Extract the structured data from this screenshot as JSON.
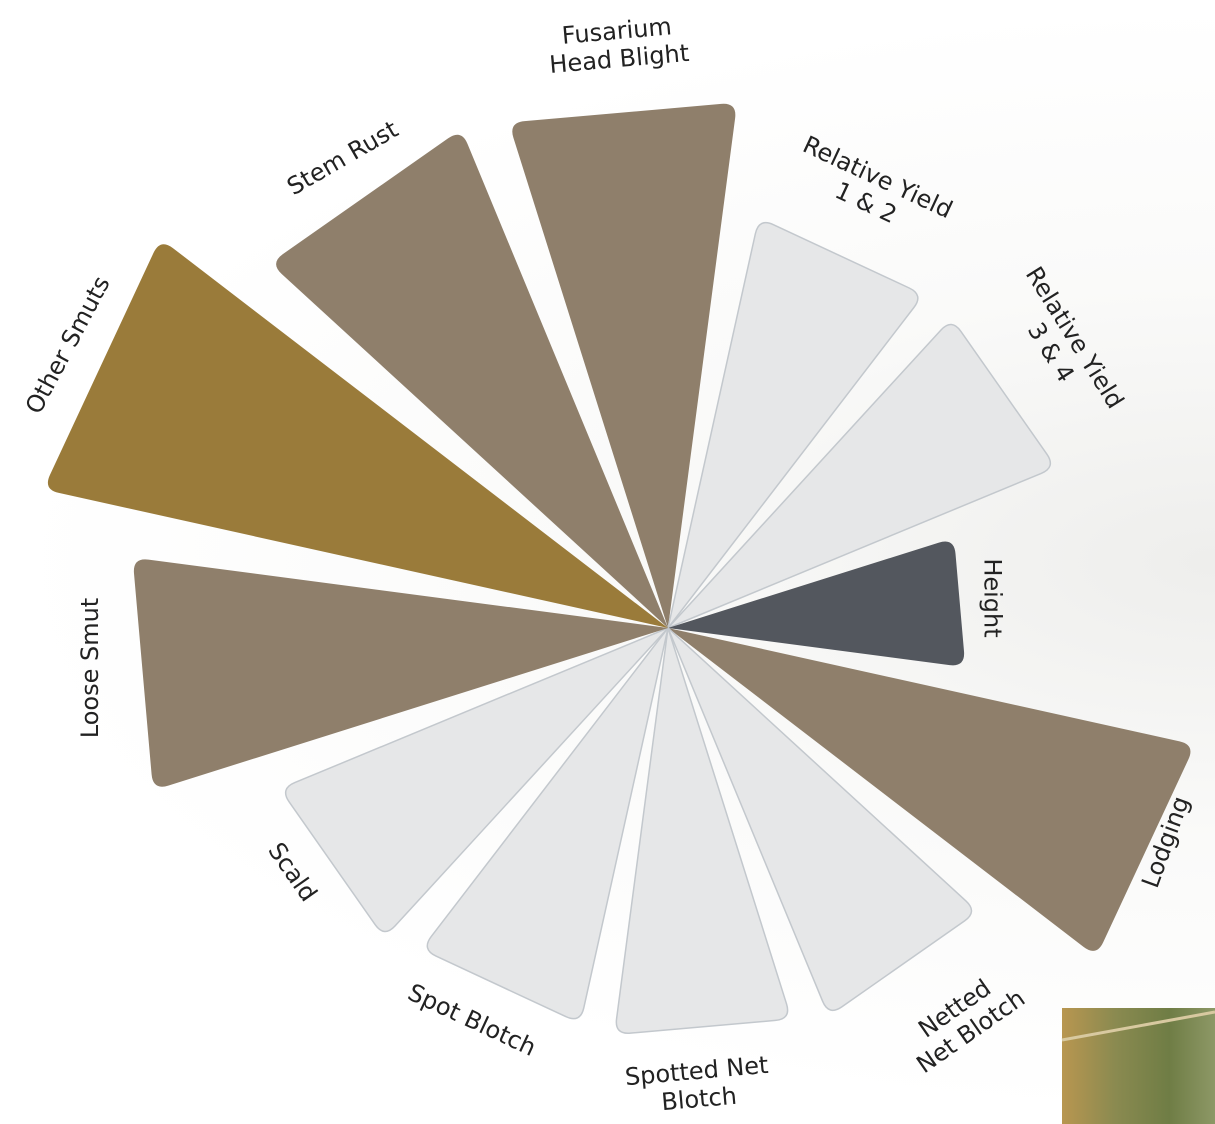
{
  "chart_data": {
    "type": "polar",
    "categories": [
      "Fusarium\nHead Blight",
      "Relative Yield\n1 & 2",
      "Relative Yield\n3 & 4",
      "Height",
      "Lodging",
      "Netted\nNet Blotch",
      "Spotted Net\nBlotch",
      "Spot Blotch",
      "Scald",
      "Loose Smut",
      "Other Smuts",
      "Stem Rust"
    ],
    "values": [
      5.3,
      4.2,
      4.2,
      3.0,
      5.4,
      4.2,
      4.1,
      4.05,
      4.2,
      5.4,
      6.4,
      5.4
    ],
    "colors": [
      "#8f7f6b",
      "#e6e7e8",
      "#e6e7e8",
      "#53575e",
      "#8f7f6b",
      "#e6e7e8",
      "#e6e7e8",
      "#e6e7e8",
      "#e6e7e8",
      "#8f7f6b",
      "#9a7b3a",
      "#8f7f6b"
    ]
  }
}
